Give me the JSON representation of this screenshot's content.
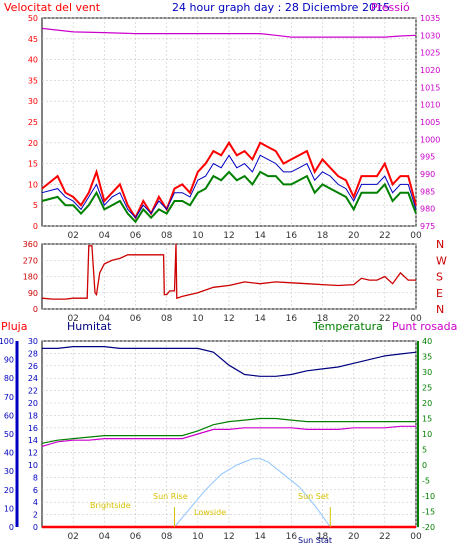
{
  "header": {
    "wind_label": "Velocitat del vent",
    "title": "24 hour graph day : 28 Diciembre 2015",
    "pressure_label": "Pressió"
  },
  "legend": {
    "rain": "Pluja",
    "humidity": "Humitat",
    "temperature": "Temperatura",
    "dewpoint": "Punt rosada"
  },
  "colors": {
    "frame": "#000000",
    "grid": "#c8c8c8",
    "wind_gust": "#ff0000",
    "wind_avg": "#008000",
    "wind_dir_avg": "#0000c0",
    "pressure": "#cc00cc",
    "direction": "#cc0000",
    "humidity": "#000080",
    "temperature": "#008000",
    "dewpoint": "#cc00cc",
    "rain": "#ff0000",
    "sun": "#8fc4ff",
    "sun_labels": "#d8c000",
    "left_axis": "#0000c0"
  },
  "annotations": {
    "sunrise": "Sun Rise",
    "sunset": "Sun Set",
    "brightside": "Brightside",
    "lowside": "Lowside",
    "sun_stat": "Sun Stat"
  },
  "chart_data": [
    {
      "type": "line",
      "title": "Velocitat del vent / Pressió",
      "x_ticks": [
        "02",
        "04",
        "06",
        "08",
        "10",
        "12",
        "14",
        "16",
        "18",
        "20",
        "22",
        "00"
      ],
      "xlim": [
        0,
        24
      ],
      "y_left": {
        "label": "Velocitat del vent",
        "lim": [
          0,
          50
        ],
        "ticks": [
          0,
          5,
          10,
          15,
          20,
          25,
          30,
          35,
          40,
          45,
          50
        ]
      },
      "y_right": {
        "label": "Pressió",
        "lim": [
          975,
          1035
        ],
        "ticks": [
          975,
          980,
          985,
          990,
          995,
          1000,
          1005,
          1010,
          1015,
          1020,
          1025,
          1030,
          1035
        ]
      },
      "series": [
        {
          "name": "Gust",
          "axis": "left",
          "x": [
            0,
            1,
            1.5,
            2,
            2.5,
            3,
            3.5,
            4,
            4.5,
            5,
            5.5,
            6,
            6.5,
            7,
            7.5,
            8,
            8.5,
            9,
            9.5,
            10,
            10.5,
            11,
            11.5,
            12,
            12.5,
            13,
            13.5,
            14,
            14.5,
            15,
            15.5,
            16,
            16.5,
            17,
            17.5,
            18,
            18.5,
            19,
            19.5,
            20,
            20.5,
            21,
            21.5,
            22,
            22.5,
            23,
            23.5,
            24
          ],
          "y": [
            9,
            12,
            8,
            7,
            5,
            8,
            13,
            6,
            8,
            10,
            5,
            2,
            6,
            3,
            7,
            4,
            9,
            10,
            8,
            13,
            15,
            18,
            17,
            20,
            17,
            18,
            16,
            20,
            19,
            18,
            15,
            16,
            17,
            18,
            13,
            16,
            14,
            12,
            11,
            7,
            12,
            12,
            12,
            15,
            10,
            12,
            12,
            5
          ]
        },
        {
          "name": "Average",
          "axis": "left",
          "x": [
            0,
            1,
            1.5,
            2,
            2.5,
            3,
            3.5,
            4,
            4.5,
            5,
            5.5,
            6,
            6.5,
            7,
            7.5,
            8,
            8.5,
            9,
            9.5,
            10,
            10.5,
            11,
            11.5,
            12,
            12.5,
            13,
            13.5,
            14,
            14.5,
            15,
            15.5,
            16,
            16.5,
            17,
            17.5,
            18,
            18.5,
            19,
            19.5,
            20,
            20.5,
            21,
            21.5,
            22,
            22.5,
            23,
            23.5,
            24
          ],
          "y": [
            6,
            7,
            5,
            5,
            3,
            5,
            8,
            4,
            5,
            6,
            3,
            1,
            4,
            2,
            4,
            3,
            6,
            6,
            5,
            8,
            9,
            12,
            11,
            13,
            11,
            12,
            10,
            13,
            12,
            12,
            10,
            10,
            11,
            12,
            8,
            10,
            9,
            8,
            7,
            4,
            8,
            8,
            8,
            10,
            6,
            8,
            8,
            3
          ]
        },
        {
          "name": "Mean",
          "axis": "left",
          "x": [
            0,
            1,
            1.5,
            2,
            2.5,
            3,
            3.5,
            4,
            4.5,
            5,
            5.5,
            6,
            6.5,
            7,
            7.5,
            8,
            8.5,
            9,
            9.5,
            10,
            10.5,
            11,
            11.5,
            12,
            12.5,
            13,
            13.5,
            14,
            14.5,
            15,
            15.5,
            16,
            16.5,
            17,
            17.5,
            18,
            18.5,
            19,
            19.5,
            20,
            20.5,
            21,
            21.5,
            22,
            22.5,
            23,
            23.5,
            24
          ],
          "y": [
            8,
            9,
            7,
            6,
            4,
            7,
            10,
            5,
            7,
            8,
            4,
            2,
            5,
            3,
            6,
            4,
            8,
            8,
            7,
            11,
            12,
            15,
            14,
            17,
            14,
            15,
            13,
            17,
            16,
            15,
            13,
            13,
            14,
            15,
            11,
            13,
            12,
            10,
            9,
            6,
            10,
            10,
            10,
            12,
            8,
            10,
            10,
            4
          ]
        },
        {
          "name": "Pressió",
          "axis": "right",
          "x": [
            0,
            2,
            4,
            6,
            8,
            10,
            12,
            14,
            15,
            16,
            18,
            20,
            22,
            23,
            24
          ],
          "y": [
            1032,
            1031,
            1030.8,
            1030.5,
            1030.5,
            1030.5,
            1030.5,
            1030.5,
            1030.0,
            1029.5,
            1029.5,
            1029.5,
            1029.5,
            1029.8,
            1030.0
          ]
        }
      ]
    },
    {
      "type": "line",
      "title": "Direction",
      "x_ticks": [
        "02",
        "04",
        "06",
        "08",
        "10",
        "12",
        "14",
        "16",
        "18",
        "20",
        "22",
        "00"
      ],
      "xlim": [
        0,
        24
      ],
      "y_left": {
        "lim": [
          0,
          360
        ],
        "ticks": [
          0,
          90,
          180,
          270,
          360
        ]
      },
      "y_right": {
        "ticks": [
          "N",
          "W",
          "S",
          "E",
          "N"
        ]
      },
      "series": [
        {
          "name": "Direction",
          "axis": "left",
          "x": [
            0,
            0.7,
            1.5,
            2,
            2.5,
            2.9,
            3,
            3.2,
            3.4,
            3.5,
            3.7,
            4,
            4.5,
            5,
            5.5,
            6,
            6.5,
            7,
            7.5,
            7.8,
            7.85,
            8,
            8.2,
            8.5,
            8.6,
            8.65,
            9,
            10,
            11,
            12,
            13,
            14,
            15,
            16,
            17,
            18,
            19,
            20,
            20.5,
            21,
            21.5,
            22,
            22.5,
            23,
            23.5,
            24
          ],
          "y": [
            60,
            55,
            55,
            60,
            60,
            60,
            350,
            350,
            90,
            80,
            200,
            250,
            270,
            280,
            300,
            300,
            300,
            300,
            300,
            300,
            80,
            80,
            100,
            100,
            360,
            60,
            70,
            90,
            120,
            130,
            150,
            140,
            150,
            145,
            140,
            135,
            130,
            135,
            170,
            160,
            160,
            180,
            140,
            200,
            160,
            160
          ]
        }
      ]
    },
    {
      "type": "line",
      "title": "Humitat / Temperatura / Punt rosada",
      "x_ticks": [
        "02",
        "04",
        "06",
        "08",
        "10",
        "12",
        "14",
        "16",
        "18",
        "20",
        "22",
        "00"
      ],
      "xlim": [
        0,
        24
      ],
      "y_left_humidity": {
        "label": "Humitat",
        "lim": [
          0,
          100
        ],
        "ticks": [
          0,
          10,
          20,
          30,
          40,
          50,
          60,
          70,
          80,
          90,
          100
        ]
      },
      "y_left_rain": {
        "label": "Pluja",
        "lim": [
          0,
          30
        ],
        "ticks": [
          0,
          2,
          4,
          6,
          8,
          10,
          12,
          14,
          16,
          18,
          20,
          22,
          24,
          26,
          28,
          30
        ]
      },
      "y_right": {
        "label": "Temperatura",
        "lim": [
          -20,
          40
        ],
        "ticks": [
          -20,
          -15,
          -10,
          -5,
          0,
          5,
          10,
          15,
          20,
          25,
          30,
          35,
          40
        ]
      },
      "series": [
        {
          "name": "Humitat",
          "axis": "left",
          "x": [
            0,
            1,
            2,
            3,
            4,
            5,
            6,
            7,
            8,
            9,
            10,
            11,
            12,
            13,
            14,
            15,
            16,
            17,
            18,
            19,
            20,
            21,
            22,
            23,
            24
          ],
          "y": [
            96,
            96,
            97,
            97,
            97,
            96,
            96,
            96,
            96,
            96,
            96,
            94,
            87,
            82,
            81,
            81,
            82,
            84,
            85,
            86,
            88,
            90,
            92,
            93,
            94
          ]
        },
        {
          "name": "Temperatura",
          "axis": "right",
          "x": [
            0,
            1,
            2,
            3,
            4,
            5,
            6,
            7,
            8,
            9,
            10,
            11,
            12,
            13,
            14,
            15,
            16,
            17,
            18,
            19,
            20,
            21,
            22,
            23,
            24
          ],
          "y": [
            7,
            8,
            8.5,
            9,
            9.5,
            9.5,
            9.5,
            9.5,
            9.5,
            9.5,
            11,
            13,
            14,
            14.5,
            15,
            15,
            14.5,
            14,
            14,
            14,
            14,
            14,
            14,
            14,
            14
          ]
        },
        {
          "name": "Punt rosada",
          "axis": "right",
          "x": [
            0,
            1,
            2,
            3,
            4,
            5,
            6,
            7,
            8,
            9,
            10,
            11,
            12,
            13,
            14,
            15,
            16,
            17,
            18,
            19,
            20,
            21,
            22,
            23,
            24
          ],
          "y": [
            6,
            7.5,
            8,
            8,
            8.5,
            8.5,
            8.5,
            8.5,
            8.5,
            8.5,
            10,
            11.5,
            11.5,
            12,
            12,
            12,
            12,
            11.5,
            11.5,
            11.5,
            12,
            12,
            12,
            12.5,
            12.5
          ]
        },
        {
          "name": "Pluja",
          "axis": "left_rain",
          "x": [
            0,
            24
          ],
          "y": [
            0,
            0
          ]
        },
        {
          "name": "Sun",
          "axis": "left_rain",
          "x": [
            8.5,
            9.5,
            10.5,
            11.5,
            12.5,
            13.5,
            14,
            14.5,
            15.5,
            16.5,
            17.5,
            18.5
          ],
          "y": [
            0,
            3,
            6,
            8.5,
            10,
            11,
            11,
            10.5,
            8.5,
            6.5,
            3.5,
            0
          ]
        }
      ]
    }
  ]
}
